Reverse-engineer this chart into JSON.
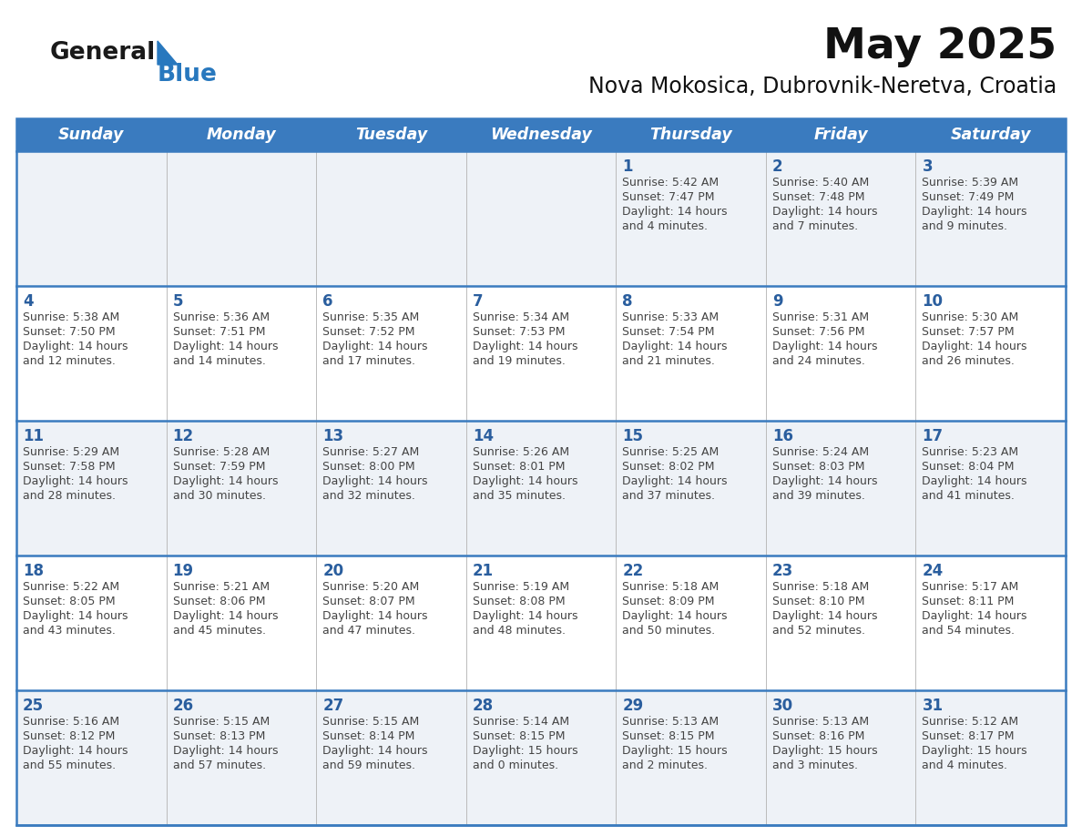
{
  "title": "May 2025",
  "subtitle": "Nova Mokosica, Dubrovnik-Neretva, Croatia",
  "days_of_week": [
    "Sunday",
    "Monday",
    "Tuesday",
    "Wednesday",
    "Thursday",
    "Friday",
    "Saturday"
  ],
  "header_bg": "#3a7bbf",
  "header_text": "#ffffff",
  "row0_bg": "#eef2f7",
  "row1_bg": "#ffffff",
  "row2_bg": "#eef2f7",
  "row3_bg": "#ffffff",
  "row4_bg": "#eef2f7",
  "day_number_color": "#2a5e9e",
  "cell_text_color": "#444444",
  "border_color": "#3a7bbf",
  "logo_general_color": "#1a1a1a",
  "logo_blue_color": "#2878be",
  "calendar_data": [
    [
      {
        "day": "",
        "sunrise": "",
        "sunset": "",
        "daylight": ""
      },
      {
        "day": "",
        "sunrise": "",
        "sunset": "",
        "daylight": ""
      },
      {
        "day": "",
        "sunrise": "",
        "sunset": "",
        "daylight": ""
      },
      {
        "day": "",
        "sunrise": "",
        "sunset": "",
        "daylight": ""
      },
      {
        "day": "1",
        "sunrise": "5:42 AM",
        "sunset": "7:47 PM",
        "daylight": "14 hours and 4 minutes."
      },
      {
        "day": "2",
        "sunrise": "5:40 AM",
        "sunset": "7:48 PM",
        "daylight": "14 hours and 7 minutes."
      },
      {
        "day": "3",
        "sunrise": "5:39 AM",
        "sunset": "7:49 PM",
        "daylight": "14 hours and 9 minutes."
      }
    ],
    [
      {
        "day": "4",
        "sunrise": "5:38 AM",
        "sunset": "7:50 PM",
        "daylight": "14 hours and 12 minutes."
      },
      {
        "day": "5",
        "sunrise": "5:36 AM",
        "sunset": "7:51 PM",
        "daylight": "14 hours and 14 minutes."
      },
      {
        "day": "6",
        "sunrise": "5:35 AM",
        "sunset": "7:52 PM",
        "daylight": "14 hours and 17 minutes."
      },
      {
        "day": "7",
        "sunrise": "5:34 AM",
        "sunset": "7:53 PM",
        "daylight": "14 hours and 19 minutes."
      },
      {
        "day": "8",
        "sunrise": "5:33 AM",
        "sunset": "7:54 PM",
        "daylight": "14 hours and 21 minutes."
      },
      {
        "day": "9",
        "sunrise": "5:31 AM",
        "sunset": "7:56 PM",
        "daylight": "14 hours and 24 minutes."
      },
      {
        "day": "10",
        "sunrise": "5:30 AM",
        "sunset": "7:57 PM",
        "daylight": "14 hours and 26 minutes."
      }
    ],
    [
      {
        "day": "11",
        "sunrise": "5:29 AM",
        "sunset": "7:58 PM",
        "daylight": "14 hours and 28 minutes."
      },
      {
        "day": "12",
        "sunrise": "5:28 AM",
        "sunset": "7:59 PM",
        "daylight": "14 hours and 30 minutes."
      },
      {
        "day": "13",
        "sunrise": "5:27 AM",
        "sunset": "8:00 PM",
        "daylight": "14 hours and 32 minutes."
      },
      {
        "day": "14",
        "sunrise": "5:26 AM",
        "sunset": "8:01 PM",
        "daylight": "14 hours and 35 minutes."
      },
      {
        "day": "15",
        "sunrise": "5:25 AM",
        "sunset": "8:02 PM",
        "daylight": "14 hours and 37 minutes."
      },
      {
        "day": "16",
        "sunrise": "5:24 AM",
        "sunset": "8:03 PM",
        "daylight": "14 hours and 39 minutes."
      },
      {
        "day": "17",
        "sunrise": "5:23 AM",
        "sunset": "8:04 PM",
        "daylight": "14 hours and 41 minutes."
      }
    ],
    [
      {
        "day": "18",
        "sunrise": "5:22 AM",
        "sunset": "8:05 PM",
        "daylight": "14 hours and 43 minutes."
      },
      {
        "day": "19",
        "sunrise": "5:21 AM",
        "sunset": "8:06 PM",
        "daylight": "14 hours and 45 minutes."
      },
      {
        "day": "20",
        "sunrise": "5:20 AM",
        "sunset": "8:07 PM",
        "daylight": "14 hours and 47 minutes."
      },
      {
        "day": "21",
        "sunrise": "5:19 AM",
        "sunset": "8:08 PM",
        "daylight": "14 hours and 48 minutes."
      },
      {
        "day": "22",
        "sunrise": "5:18 AM",
        "sunset": "8:09 PM",
        "daylight": "14 hours and 50 minutes."
      },
      {
        "day": "23",
        "sunrise": "5:18 AM",
        "sunset": "8:10 PM",
        "daylight": "14 hours and 52 minutes."
      },
      {
        "day": "24",
        "sunrise": "5:17 AM",
        "sunset": "8:11 PM",
        "daylight": "14 hours and 54 minutes."
      }
    ],
    [
      {
        "day": "25",
        "sunrise": "5:16 AM",
        "sunset": "8:12 PM",
        "daylight": "14 hours and 55 minutes."
      },
      {
        "day": "26",
        "sunrise": "5:15 AM",
        "sunset": "8:13 PM",
        "daylight": "14 hours and 57 minutes."
      },
      {
        "day": "27",
        "sunrise": "5:15 AM",
        "sunset": "8:14 PM",
        "daylight": "14 hours and 59 minutes."
      },
      {
        "day": "28",
        "sunrise": "5:14 AM",
        "sunset": "8:15 PM",
        "daylight": "15 hours and 0 minutes."
      },
      {
        "day": "29",
        "sunrise": "5:13 AM",
        "sunset": "8:15 PM",
        "daylight": "15 hours and 2 minutes."
      },
      {
        "day": "30",
        "sunrise": "5:13 AM",
        "sunset": "8:16 PM",
        "daylight": "15 hours and 3 minutes."
      },
      {
        "day": "31",
        "sunrise": "5:12 AM",
        "sunset": "8:17 PM",
        "daylight": "15 hours and 4 minutes."
      }
    ]
  ]
}
